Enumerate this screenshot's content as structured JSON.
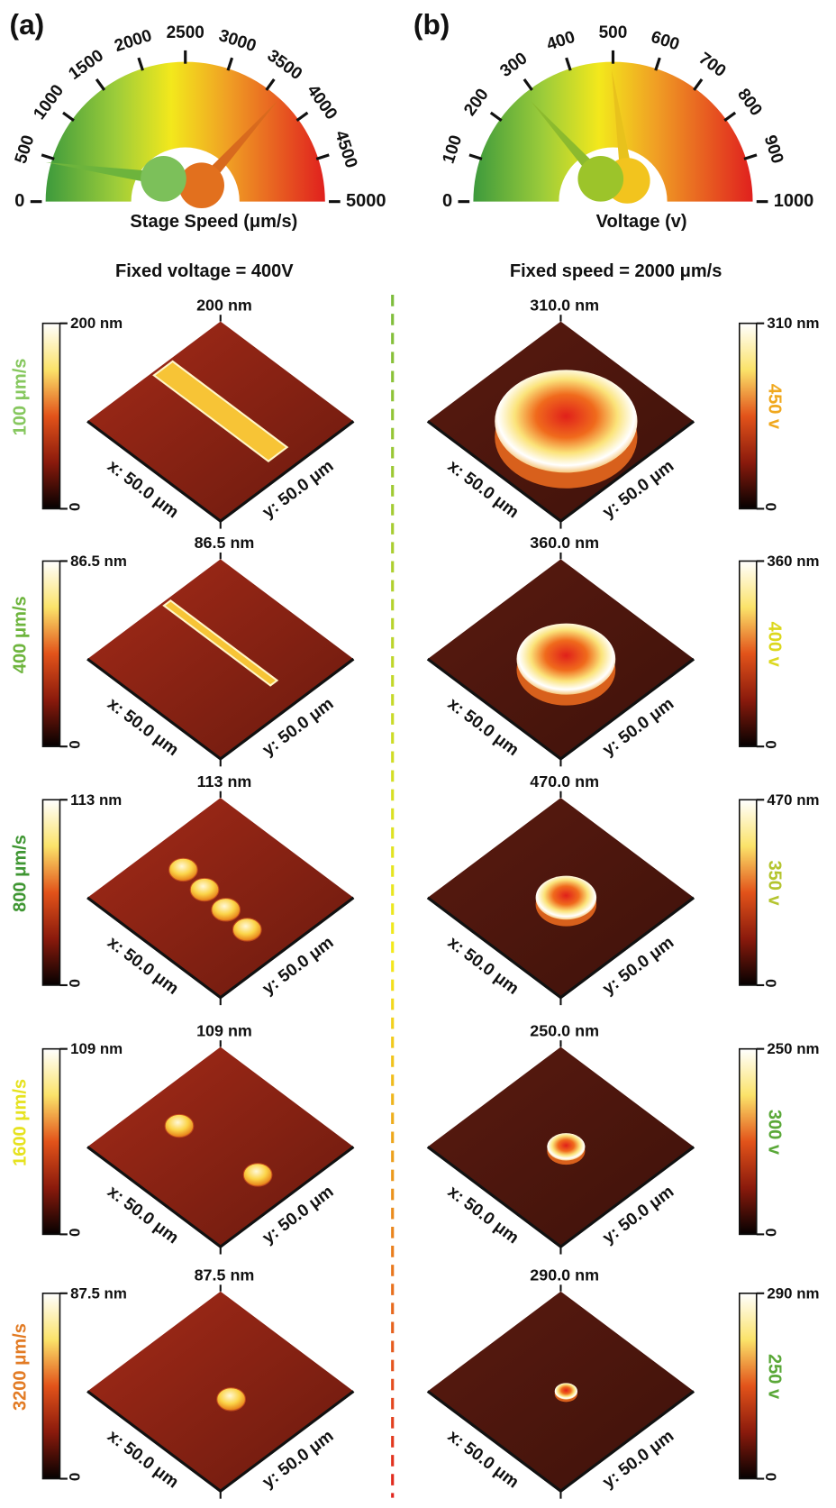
{
  "panels": [
    {
      "label": "(a)",
      "gauge": {
        "ticks": [
          "0",
          "500",
          "1000",
          "1500",
          "2000",
          "2500",
          "3000",
          "3500",
          "4000",
          "4500",
          "5000"
        ],
        "title": "Stage Speed (μm/s)"
      },
      "subtitle": "Fixed voltage = 400V",
      "rows": [
        {
          "condition": "100 μm/s",
          "color": "#86c75e",
          "height": "200 nm",
          "scale_max": "200 nm",
          "scale_min": "0",
          "x_axis": "x: 50.0 μm",
          "y_axis": "y: 50.0 μm"
        },
        {
          "condition": "400 μm/s",
          "color": "#6db43c",
          "height": "86.5 nm",
          "scale_max": "86.5 nm",
          "scale_min": "0",
          "x_axis": "x: 50.0 μm",
          "y_axis": "y: 50.0 μm"
        },
        {
          "condition": "800 μm/s",
          "color": "#3f9632",
          "height": "113 nm",
          "scale_max": "113 nm",
          "scale_min": "0",
          "x_axis": "x: 50.0 μm",
          "y_axis": "y: 50.0 μm"
        },
        {
          "condition": "1600 μm/s",
          "color": "#e6e21e",
          "height": "109 nm",
          "scale_max": "109 nm",
          "scale_min": "0",
          "x_axis": "x: 50.0 μm",
          "y_axis": "y: 50.0 μm"
        },
        {
          "condition": "3200 μm/s",
          "color": "#e27b24",
          "height": "87.5 nm",
          "scale_max": "87.5 nm",
          "scale_min": "0",
          "x_axis": "x: 50.0 μm",
          "y_axis": "y: 50.0 μm"
        }
      ]
    },
    {
      "label": "(b)",
      "gauge": {
        "ticks": [
          "0",
          "100",
          "200",
          "300",
          "400",
          "500",
          "600",
          "700",
          "800",
          "900",
          "1000"
        ],
        "title": "Voltage (v)"
      },
      "subtitle": "Fixed speed = 2000 μm/s",
      "rows": [
        {
          "condition": "450 v",
          "color": "#f0a81e",
          "height": "310.0 nm",
          "scale_max": "310 nm",
          "scale_min": "0",
          "x_axis": "x: 50.0 μm",
          "y_axis": "y: 50.0 μm"
        },
        {
          "condition": "400 v",
          "color": "#dcd81e",
          "height": "360.0 nm",
          "scale_max": "360 nm",
          "scale_min": "0",
          "x_axis": "x: 50.0 μm",
          "y_axis": "y: 50.0 μm"
        },
        {
          "condition": "350 v",
          "color": "#b4c42e",
          "height": "470.0 nm",
          "scale_max": "470 nm",
          "scale_min": "0",
          "x_axis": "x: 50.0 μm",
          "y_axis": "y: 50.0 μm"
        },
        {
          "condition": "300 v",
          "color": "#5aa838",
          "height": "250.0 nm",
          "scale_max": "250 nm",
          "scale_min": "0",
          "x_axis": "x: 50.0 μm",
          "y_axis": "y: 50.0 μm"
        },
        {
          "condition": "250 v",
          "color": "#5aa838",
          "height": "290.0 nm",
          "scale_max": "290 nm",
          "scale_min": "0",
          "x_axis": "x: 50.0 μm",
          "y_axis": "y: 50.0 μm"
        }
      ]
    }
  ]
}
